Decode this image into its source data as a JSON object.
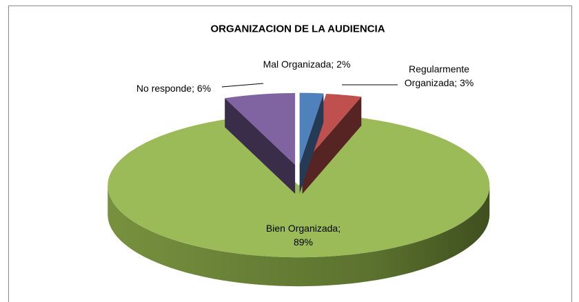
{
  "chart_data": {
    "type": "pie",
    "title": "ORGANIZACION DE LA AUDIENCIA",
    "values": [
      2,
      3,
      89,
      6
    ],
    "value_labels": [
      "Mal Organizada; 2%",
      "Regularmente\nOrganizada; 3%",
      "Bien Organizada;\n89%",
      "No responde; 6%"
    ],
    "colors": [
      "#4f81bd",
      "#c0504d",
      "#9bbb59",
      "#8064a2"
    ]
  }
}
